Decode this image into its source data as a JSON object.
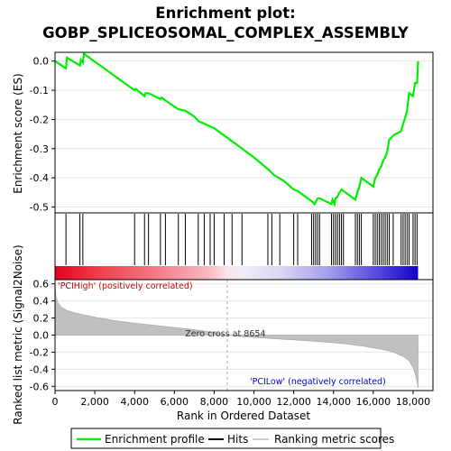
{
  "title_line1": "Enrichment plot:",
  "title_line2": "GOBP_SPLICEOSOMAL_COMPLEX_ASSEMBLY",
  "colors": {
    "enrichment_line": "#00ee00",
    "hits": "#000000",
    "metric_fill": "#c0c0c0",
    "grid": "#e6e6e6",
    "red_high": "#e8001f",
    "blue_low": "#1500d0",
    "zero_cross_line": "#aaaaaa"
  },
  "legend": {
    "enrichment_profile": "Enrichment profile",
    "hits": "Hits",
    "ranking_metric_scores": "Ranking metric scores"
  },
  "annotations": {
    "pos_label": "'PCIHigh' (positively correlated)",
    "neg_label": "'PCILow' (negatively correlated)",
    "zero_cross": "Zero cross at 8654"
  },
  "chart_data": {
    "type": "line",
    "top_panel": {
      "ylabel": "Enrichment score (ES)",
      "ylim": [
        -0.52,
        0.03
      ],
      "yticks": [
        "0.0",
        "-0.1",
        "-0.2",
        "-0.3",
        "-0.4",
        "-0.5"
      ],
      "ytick_values": [
        0.0,
        -0.1,
        -0.2,
        -0.3,
        -0.4,
        -0.5
      ],
      "grid": true,
      "es_curve": {
        "x": [
          0,
          550,
          600,
          1250,
          1300,
          1400,
          1450,
          4000,
          4050,
          4500,
          4550,
          4700,
          5300,
          5350,
          5550,
          6200,
          6550,
          7000,
          7200,
          8000,
          9000,
          10000,
          10700,
          11000,
          11500,
          12000,
          12200,
          12900,
          13050,
          13200,
          13300,
          13900,
          13950,
          14050,
          14100,
          14200,
          14250,
          14350,
          14400,
          15100,
          15200,
          15300,
          15400,
          15500,
          16000,
          16100,
          16200,
          16300,
          16400,
          16500,
          16600,
          16700,
          16800,
          17000,
          17400,
          17500,
          17600,
          17700,
          17800,
          18000,
          18100,
          18200,
          18250
        ],
        "y": [
          0.0,
          -0.025,
          0.012,
          -0.015,
          0.005,
          -0.005,
          0.025,
          -0.1,
          -0.095,
          -0.12,
          -0.11,
          -0.11,
          -0.13,
          -0.125,
          -0.135,
          -0.165,
          -0.17,
          -0.19,
          -0.205,
          -0.23,
          -0.28,
          -0.33,
          -0.37,
          -0.39,
          -0.41,
          -0.44,
          -0.445,
          -0.48,
          -0.49,
          -0.47,
          -0.47,
          -0.49,
          -0.475,
          -0.49,
          -0.47,
          -0.465,
          -0.455,
          -0.445,
          -0.44,
          -0.475,
          -0.45,
          -0.43,
          -0.4,
          -0.405,
          -0.43,
          -0.4,
          -0.39,
          -0.37,
          -0.36,
          -0.34,
          -0.33,
          -0.31,
          -0.27,
          -0.255,
          -0.24,
          -0.215,
          -0.195,
          -0.17,
          -0.11,
          -0.12,
          -0.075,
          -0.075,
          0.0
        ]
      }
    },
    "hits_panel": {
      "hit_ranks": [
        550,
        1250,
        1400,
        4000,
        4500,
        4700,
        5300,
        5550,
        6200,
        6550,
        7200,
        7500,
        7800,
        8000,
        8500,
        8900,
        9400,
        10700,
        10900,
        11300,
        12000,
        12200,
        12900,
        13000,
        13100,
        13200,
        13300,
        13900,
        14000,
        14100,
        14200,
        14300,
        14400,
        14500,
        15100,
        15200,
        15300,
        15400,
        16000,
        16100,
        16200,
        16300,
        16400,
        16500,
        16600,
        16700,
        16800,
        17000,
        17400,
        17500,
        17600,
        17700,
        17800,
        18000,
        18100,
        18200
      ]
    },
    "bottom_panel": {
      "ylabel": "Ranked list metric (Signal2Noise)",
      "xlabel": "Rank in Ordered Dataset",
      "ylim": [
        -0.65,
        0.65
      ],
      "yticks": [
        "0.6",
        "0.4",
        "0.2",
        "0.0",
        "-0.2",
        "-0.4",
        "-0.6"
      ],
      "ytick_values": [
        0.6,
        0.4,
        0.2,
        0.0,
        -0.2,
        -0.4,
        -0.6
      ],
      "xlim": [
        0,
        19000
      ],
      "xticks": [
        "0",
        "2,000",
        "4,000",
        "6,000",
        "8,000",
        "10,000",
        "12,000",
        "14,000",
        "16,000",
        "18,000"
      ],
      "xtick_values": [
        0,
        2000,
        4000,
        6000,
        8000,
        10000,
        12000,
        14000,
        16000,
        18000
      ],
      "zero_cross": 8654,
      "total": 18250,
      "metric_curve": {
        "x": [
          0,
          50,
          150,
          300,
          600,
          1000,
          2000,
          3000,
          4000,
          5000,
          6000,
          7000,
          8000,
          8654,
          9500,
          10500,
          11500,
          12500,
          13500,
          14500,
          15500,
          16000,
          16500,
          17000,
          17500,
          17800,
          18000,
          18100,
          18200,
          18250
        ],
        "y": [
          0.62,
          0.45,
          0.38,
          0.33,
          0.29,
          0.26,
          0.21,
          0.17,
          0.14,
          0.115,
          0.09,
          0.065,
          0.03,
          0.0,
          -0.02,
          -0.035,
          -0.05,
          -0.065,
          -0.08,
          -0.1,
          -0.13,
          -0.15,
          -0.17,
          -0.2,
          -0.25,
          -0.3,
          -0.38,
          -0.45,
          -0.55,
          -0.62
        ]
      }
    }
  }
}
